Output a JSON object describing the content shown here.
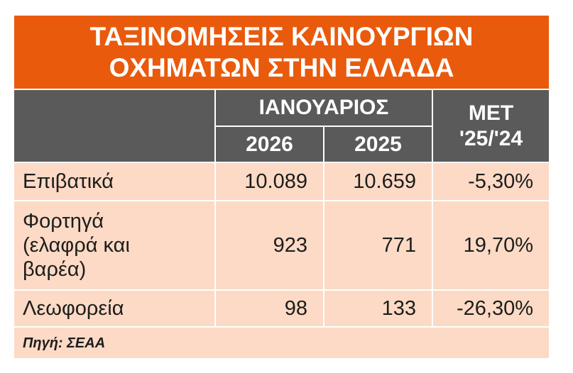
{
  "title": [
    "ΤΑΞΙΝΟΜΗΣΕΙΣ ΚΑΙΝΟΥΡΓΙΩΝ",
    "ΟΧΗΜΑΤΩΝ ΣΤΗΝ ΕΛΛΑΔΑ"
  ],
  "table": {
    "header": {
      "group": "ΙΑΝΟΥΑΡΙΟΣ",
      "years": [
        "2026",
        "2025"
      ],
      "change": [
        "ΜΕΤ",
        "'25/'24"
      ]
    },
    "rows": [
      [
        [
          "Επιβατικά"
        ],
        "10.089",
        "10.659",
        "-5,30%"
      ],
      [
        [
          "Φορτηγά",
          "(ελαφρά και",
          "βαρέα)"
        ],
        "923",
        "771",
        "19,70%"
      ],
      [
        [
          "Λεωφορεία"
        ],
        "98",
        "133",
        "-26,30%"
      ]
    ],
    "source": "Πηγή: ΣΕΑΑ"
  }
}
